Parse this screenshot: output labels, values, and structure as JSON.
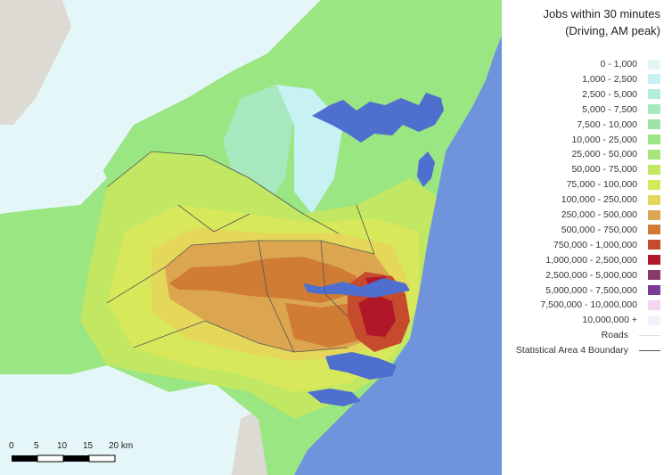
{
  "legend": {
    "title_line1": "Jobs within 30 minutes",
    "title_line2": "(Driving, AM peak)",
    "classes": [
      {
        "label": "0 - 1,000",
        "color": "#e4f6f8"
      },
      {
        "label": "1,000 - 2,500",
        "color": "#c8f1f4"
      },
      {
        "label": "2,500 - 5,000",
        "color": "#b5eedb"
      },
      {
        "label": "5,000 - 7,500",
        "color": "#a7e8be"
      },
      {
        "label": "7,500 - 10,000",
        "color": "#9ee3a6"
      },
      {
        "label": "10,000 - 25,000",
        "color": "#9ae682"
      },
      {
        "label": "25,000 - 50,000",
        "color": "#a8e67a"
      },
      {
        "label": "50,000 - 75,000",
        "color": "#c2e762"
      },
      {
        "label": "75,000 - 100,000",
        "color": "#d7e85a"
      },
      {
        "label": "100,000 - 250,000",
        "color": "#e4d75a"
      },
      {
        "label": "250,000 - 500,000",
        "color": "#dca650"
      },
      {
        "label": "500,000 - 750,000",
        "color": "#d07c35"
      },
      {
        "label": "750,000 - 1,000,000",
        "color": "#c64a2c"
      },
      {
        "label": "1,000,000 - 2,500,000",
        "color": "#b0182a"
      },
      {
        "label": "2,500,000 - 5,000,000",
        "color": "#8a3a68"
      },
      {
        "label": "5,000,000 - 7,500,000",
        "color": "#7a3a95"
      },
      {
        "label": "7,500,000 - 10,000,000",
        "color": "#f5d6f2"
      },
      {
        "label": "10,000,000 +",
        "color": "#eef3fb"
      }
    ],
    "roads_label": "Roads",
    "roads_color": "#dddddd",
    "boundary_label": "Statistical Area 4 Boundary",
    "boundary_color": "#555555"
  },
  "scale_bar": {
    "ticks": [
      "0",
      "5",
      "10",
      "15",
      "20 km"
    ]
  },
  "map_colors": {
    "ocean": "#6f94dc",
    "land_outside": "#dcdad3",
    "water_inlet": "#4f6fcf"
  }
}
